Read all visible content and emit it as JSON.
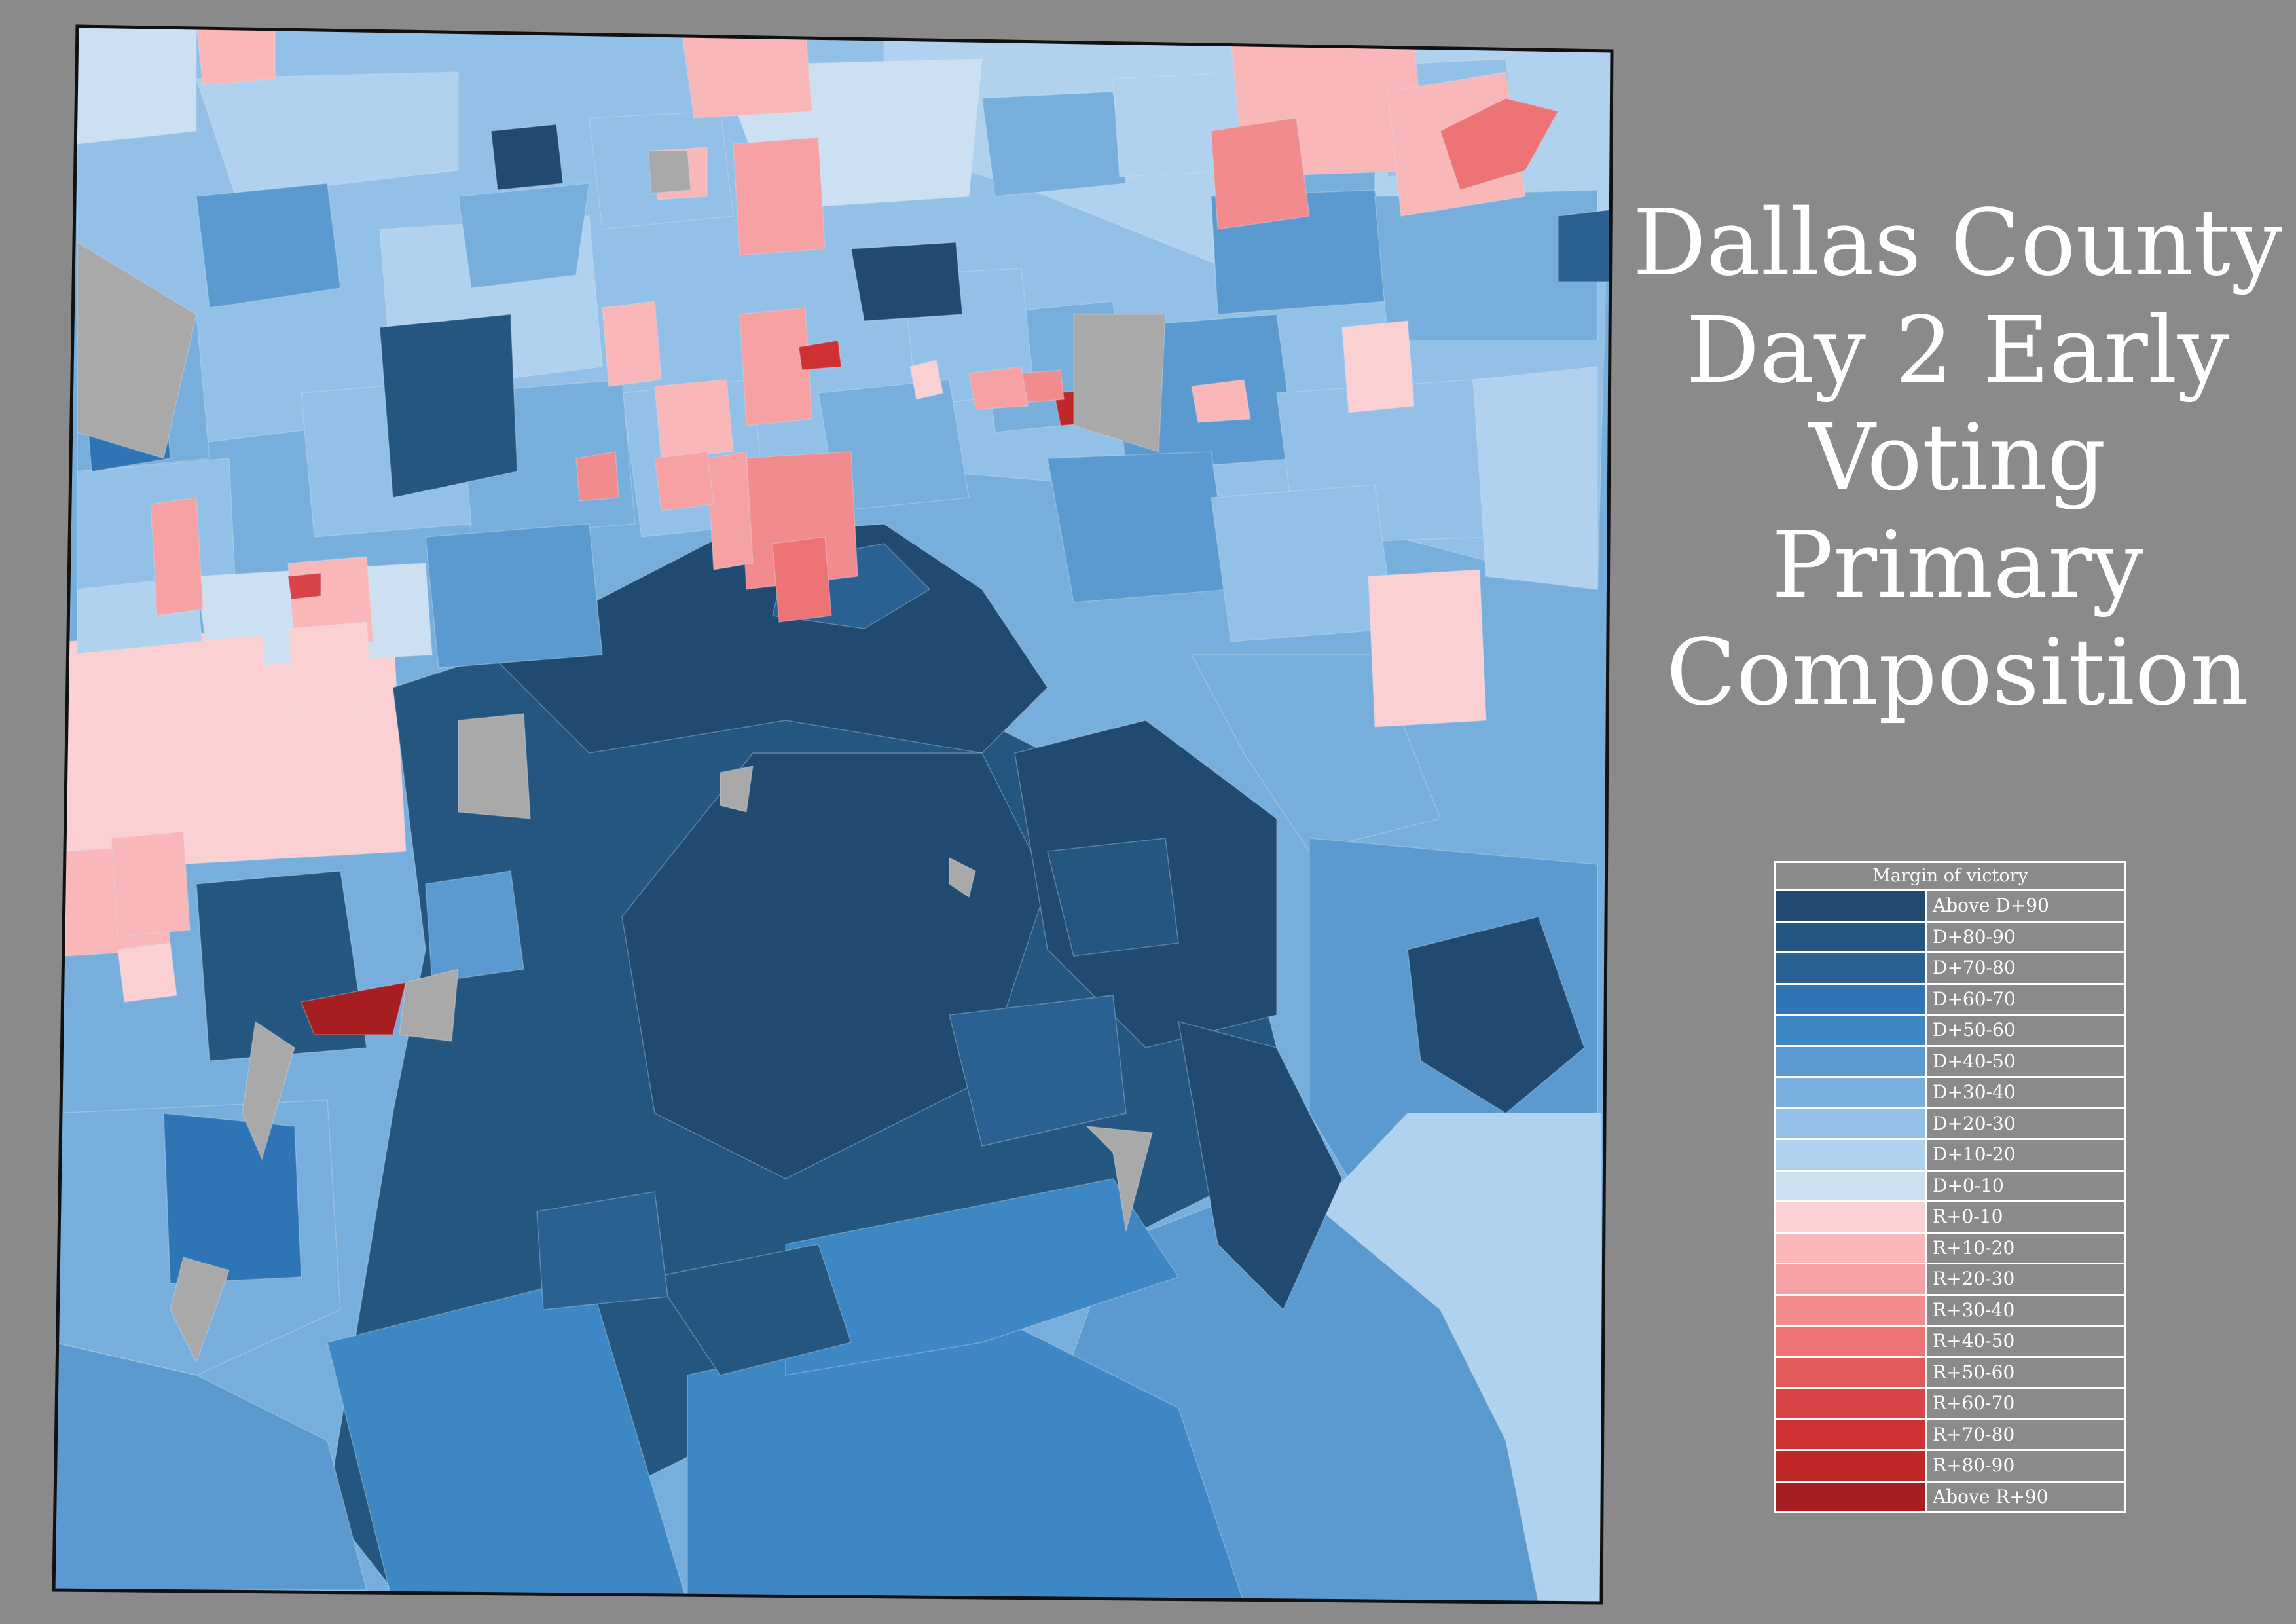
{
  "title_lines": [
    "Dallas County",
    "Day 2 Early",
    "Voting",
    "Primary",
    "Composition"
  ],
  "legend": {
    "title": "Margin of victory",
    "items": [
      {
        "label": "Above D+90",
        "color": "#204a70"
      },
      {
        "label": "D+80-90",
        "color": "#245680"
      },
      {
        "label": "D+70-80",
        "color": "#2a6092"
      },
      {
        "label": "D+60-70",
        "color": "#2f75b5"
      },
      {
        "label": "D+50-60",
        "color": "#3d88c4"
      },
      {
        "label": "D+40-50",
        "color": "#5a9ad0"
      },
      {
        "label": "D+30-40",
        "color": "#78aedc"
      },
      {
        "label": "D+20-30",
        "color": "#93c0e6"
      },
      {
        "label": "D+10-20",
        "color": "#b1d2ee"
      },
      {
        "label": "D+0-10",
        "color": "#cde0f1"
      },
      {
        "label": "R+0-10",
        "color": "#fbd0d3"
      },
      {
        "label": "R+10-20",
        "color": "#f9b7ba"
      },
      {
        "label": "R+20-30",
        "color": "#f6a1a4"
      },
      {
        "label": "R+30-40",
        "color": "#f28b8e"
      },
      {
        "label": "R+40-50",
        "color": "#ed7375"
      },
      {
        "label": "R+50-60",
        "color": "#e45a5b"
      },
      {
        "label": "R+60-70",
        "color": "#d94345"
      },
      {
        "label": "R+70-80",
        "color": "#cd3132"
      },
      {
        "label": "R+80-90",
        "color": "#c02729"
      },
      {
        "label": "Above R+90",
        "color": "#a61e22"
      }
    ]
  },
  "colors": {
    "background": "#8a8a8a",
    "no_data": "#a9a9a9",
    "county_border": "#111111",
    "text": "#ffffff"
  }
}
